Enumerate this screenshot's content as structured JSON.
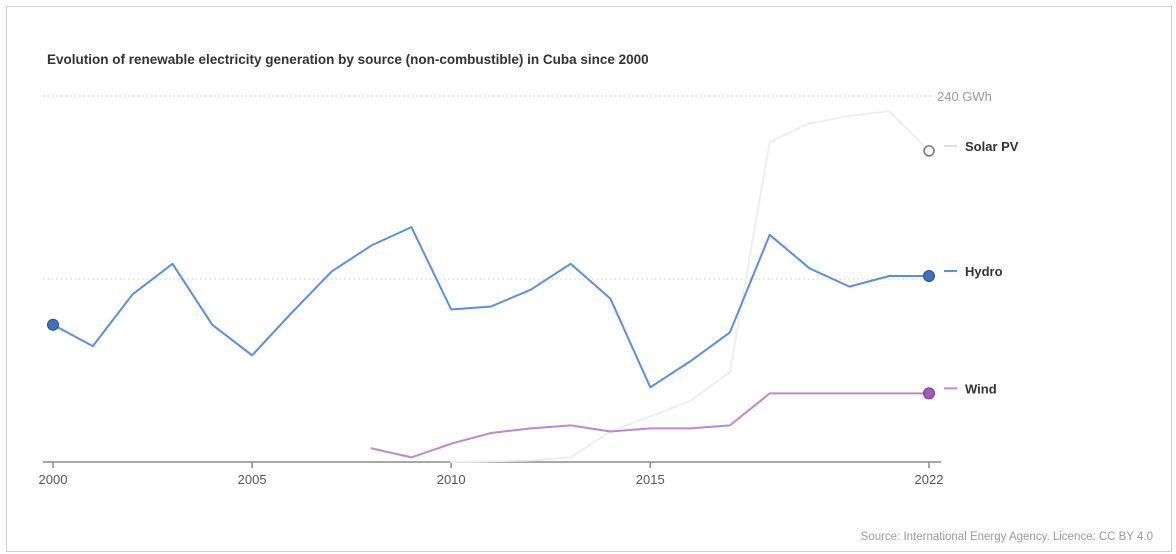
{
  "chart_data": {
    "type": "line",
    "title": "Evolution of renewable electricity generation by source (non-combustible) in Cuba since 2000",
    "xlim": [
      2000,
      2022
    ],
    "ylim": [
      0,
      240
    ],
    "x_ticks": [
      "2000",
      "2005",
      "2010",
      "2015",
      "2022"
    ],
    "y_gridline_label": "240 GWh",
    "grid": "dotted horizontal",
    "legend": "inline at line ends",
    "series": [
      {
        "name": "Solar PV",
        "color": "#eeeeee",
        "end_marker": "hollow",
        "x": [
          2010,
          2011,
          2012,
          2013,
          2014,
          2015,
          2016,
          2017,
          2018,
          2019,
          2020,
          2021,
          2022
        ],
        "y": [
          0,
          0.5,
          1,
          3,
          20,
          30,
          40,
          59,
          210,
          222,
          227,
          230,
          204
        ]
      },
      {
        "name": "Hydro",
        "color": "#5a8fdc",
        "end_marker": "filled",
        "x": [
          2000,
          2001,
          2002,
          2003,
          2004,
          2005,
          2006,
          2007,
          2008,
          2009,
          2010,
          2011,
          2012,
          2013,
          2014,
          2015,
          2016,
          2017,
          2018,
          2019,
          2020,
          2021,
          2022
        ],
        "y": [
          90,
          76,
          110,
          130,
          90,
          70,
          98,
          125,
          142,
          154,
          100,
          102,
          113,
          130,
          107,
          49,
          66,
          85,
          149,
          127,
          115,
          122,
          122
        ]
      },
      {
        "name": "Wind",
        "color": "#c186d2",
        "end_marker": "filled",
        "x": [
          2008,
          2009,
          2010,
          2011,
          2012,
          2013,
          2014,
          2015,
          2016,
          2017,
          2018,
          2019,
          2020,
          2021,
          2022
        ],
        "y": [
          9,
          3,
          12,
          19,
          22,
          24,
          20,
          22,
          22,
          24,
          45,
          45,
          45,
          45,
          45
        ]
      }
    ]
  },
  "source": "Source: International Energy Agency. Licence: CC BY 4.0"
}
